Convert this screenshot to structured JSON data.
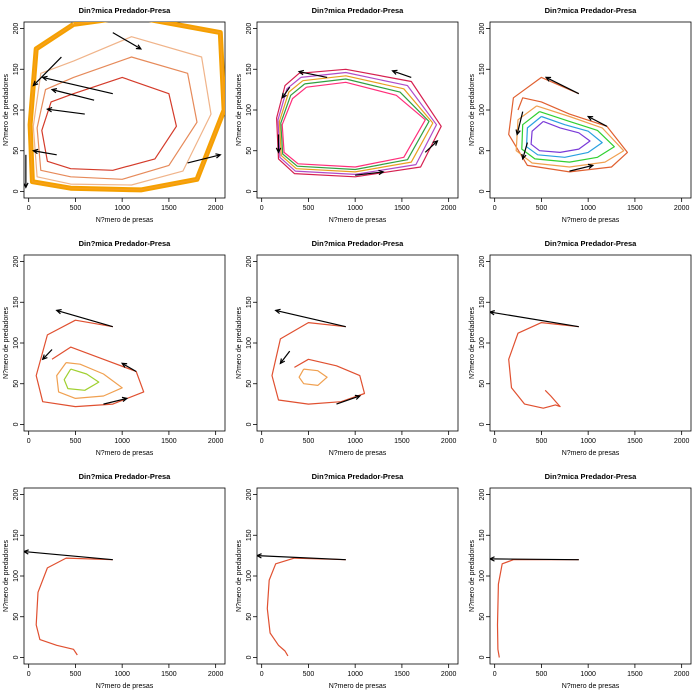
{
  "figure": {
    "title_text": "Din?mica Predador-Presa",
    "xlabel_text": "N?mero de presas",
    "ylabel_text": "N?mero de predadores"
  },
  "chart_data": [
    {
      "type": "line",
      "title": "Din?mica Predador-Presa",
      "xlabel": "N?mero de presas",
      "ylabel": "N?mero de predadores",
      "xlim": [
        -50,
        2100
      ],
      "ylim": [
        -8,
        208
      ],
      "xticks": [
        0,
        500,
        1000,
        1500,
        2000
      ],
      "yticks": [
        0,
        50,
        100,
        150,
        200
      ],
      "outer_color": "#f5a000",
      "series": [
        {
          "label": "",
          "color": "#d43b2a",
          "x": [
            480,
            240,
            140,
            200,
            450,
            900,
            1350,
            1580,
            1500,
            1000,
            480
          ],
          "y": [
            120,
            110,
            75,
            37,
            28,
            26,
            40,
            80,
            120,
            140,
            120
          ]
        },
        {
          "label": "",
          "color": "#e68a5a",
          "x": [
            480,
            180,
            90,
            130,
            450,
            1000,
            1500,
            1800,
            1700,
            1100,
            480
          ],
          "y": [
            140,
            125,
            78,
            26,
            18,
            15,
            32,
            85,
            145,
            165,
            140
          ]
        },
        {
          "label": "",
          "color": "#f0b48a",
          "x": [
            480,
            130,
            50,
            90,
            450,
            1100,
            1650,
            1950,
            1850,
            1100,
            480
          ],
          "y": [
            160,
            145,
            80,
            18,
            9,
            8,
            25,
            95,
            165,
            190,
            160
          ]
        },
        {
          "label": "",
          "color": "#f7a020",
          "x": [
            480,
            80,
            15,
            40,
            450,
            1200,
            1800,
            2090,
            2050,
            1100,
            480
          ],
          "y": [
            205,
            175,
            82,
            12,
            4,
            2,
            15,
            100,
            195,
            215,
            205
          ]
        }
      ],
      "arrows": [
        {
          "x": [
            900,
            150
          ],
          "y": [
            120,
            140
          ]
        },
        {
          "x": [
            700,
            250
          ],
          "y": [
            112,
            125
          ]
        },
        {
          "x": [
            600,
            200
          ],
          "y": [
            95,
            101
          ]
        },
        {
          "x": [
            350,
            50
          ],
          "y": [
            165,
            130
          ]
        },
        {
          "x": [
            900,
            1200
          ],
          "y": [
            195,
            175
          ]
        },
        {
          "x": [
            1700,
            2050
          ],
          "y": [
            35,
            45
          ]
        },
        {
          "x": [
            300,
            50
          ],
          "y": [
            45,
            50
          ]
        },
        {
          "x": [
            -30,
            -30
          ],
          "y": [
            45,
            5
          ]
        }
      ]
    },
    {
      "type": "line",
      "title": "Din?mica Predador-Presa",
      "xlabel": "N?mero de presas",
      "ylabel": "N?mero de predadores",
      "xlim": [
        -50,
        2100
      ],
      "ylim": [
        -8,
        208
      ],
      "xticks": [
        0,
        500,
        1000,
        1500,
        2000
      ],
      "yticks": [
        0,
        50,
        100,
        150,
        200
      ],
      "series": [
        {
          "label": "",
          "color": "#d62050",
          "x": [
            400,
            250,
            160,
            180,
            350,
            1000,
            1700,
            1920,
            1600,
            900,
            400
          ],
          "y": [
            145,
            130,
            90,
            40,
            22,
            18,
            30,
            80,
            135,
            150,
            145
          ]
        },
        {
          "label": "",
          "color": "#b04cc8",
          "x": [
            420,
            270,
            175,
            195,
            360,
            1000,
            1650,
            1870,
            1560,
            900,
            420
          ],
          "y": [
            140,
            126,
            88,
            42,
            25,
            21,
            33,
            82,
            130,
            146,
            140
          ]
        },
        {
          "label": "",
          "color": "#e8a020",
          "x": [
            440,
            290,
            190,
            210,
            370,
            1000,
            1600,
            1830,
            1520,
            900,
            440
          ],
          "y": [
            136,
            122,
            86,
            44,
            28,
            24,
            36,
            84,
            126,
            142,
            136
          ]
        },
        {
          "label": "",
          "color": "#30a040",
          "x": [
            460,
            310,
            205,
            225,
            380,
            1000,
            1560,
            1790,
            1480,
            900,
            460
          ],
          "y": [
            132,
            118,
            84,
            46,
            31,
            27,
            39,
            86,
            122,
            138,
            132
          ]
        },
        {
          "label": "",
          "color": "#ff2e7a",
          "x": [
            480,
            330,
            220,
            240,
            390,
            1000,
            1520,
            1750,
            1440,
            900,
            480
          ],
          "y": [
            128,
            114,
            82,
            48,
            34,
            30,
            42,
            88,
            118,
            134,
            128
          ]
        }
      ],
      "arrows": [
        {
          "x": [
            700,
            400
          ],
          "y": [
            140,
            147
          ]
        },
        {
          "x": [
            300,
            220
          ],
          "y": [
            128,
            115
          ]
        },
        {
          "x": [
            180,
            180
          ],
          "y": [
            70,
            48
          ]
        },
        {
          "x": [
            1000,
            1300
          ],
          "y": [
            20,
            24
          ]
        },
        {
          "x": [
            1750,
            1880
          ],
          "y": [
            48,
            62
          ]
        },
        {
          "x": [
            1600,
            1400
          ],
          "y": [
            140,
            148
          ]
        }
      ]
    },
    {
      "type": "line",
      "title": "Din?mica Predador-Presa",
      "xlabel": "N?mero de presas",
      "ylabel": "N?mero de predadores",
      "xlim": [
        -50,
        2100
      ],
      "ylim": [
        -8,
        208
      ],
      "xticks": [
        0,
        500,
        1000,
        1500,
        2000
      ],
      "yticks": [
        0,
        50,
        100,
        150,
        200
      ],
      "series": [
        {
          "label": "",
          "color": "#e06030",
          "x": [
            900,
            500,
            200,
            150,
            350,
            800,
            1250,
            1420,
            1200,
            800,
            500,
            300,
            250
          ],
          "y": [
            120,
            140,
            115,
            70,
            32,
            24,
            30,
            48,
            80,
            95,
            110,
            115,
            100
          ]
        },
        {
          "label": "",
          "color": "#f0a050",
          "x": [
            450,
            250,
            230,
            400,
            800,
            1180,
            1380,
            1150,
            800,
            450
          ],
          "y": [
            105,
            88,
            50,
            35,
            30,
            36,
            50,
            78,
            92,
            105
          ]
        },
        {
          "label": "",
          "color": "#30d030",
          "x": [
            480,
            300,
            290,
            430,
            800,
            1100,
            1280,
            1100,
            800,
            480
          ],
          "y": [
            98,
            82,
            52,
            40,
            36,
            42,
            55,
            75,
            86,
            98
          ]
        },
        {
          "label": "",
          "color": "#2aa0e0",
          "x": [
            500,
            350,
            340,
            460,
            750,
            1000,
            1150,
            1000,
            750,
            500
          ],
          "y": [
            92,
            78,
            55,
            45,
            42,
            48,
            60,
            74,
            82,
            92
          ]
        },
        {
          "label": "",
          "color": "#7a3ad8",
          "x": [
            520,
            400,
            390,
            480,
            700,
            900,
            1020,
            900,
            700,
            520
          ],
          "y": [
            86,
            74,
            58,
            50,
            48,
            52,
            62,
            72,
            78,
            86
          ]
        }
      ],
      "arrows": [
        {
          "x": [
            900,
            550
          ],
          "y": [
            120,
            140
          ]
        },
        {
          "x": [
            300,
            240
          ],
          "y": [
            98,
            70
          ]
        },
        {
          "x": [
            800,
            1050
          ],
          "y": [
            25,
            32
          ]
        },
        {
          "x": [
            1200,
            1000
          ],
          "y": [
            80,
            92
          ]
        },
        {
          "x": [
            350,
            300
          ],
          "y": [
            60,
            40
          ]
        }
      ]
    },
    {
      "type": "line",
      "title": "Din?mica Predador-Presa",
      "xlabel": "N?mero de presas",
      "ylabel": "N?mero de predadores",
      "xlim": [
        -50,
        2100
      ],
      "ylim": [
        -8,
        208
      ],
      "xticks": [
        0,
        500,
        1000,
        1500,
        2000
      ],
      "yticks": [
        0,
        50,
        100,
        150,
        200
      ],
      "series": [
        {
          "label": "",
          "color": "#e05030",
          "x": [
            900,
            500,
            200,
            80,
            150,
            500,
            900,
            1230,
            1150,
            800,
            450,
            250
          ],
          "y": [
            120,
            128,
            110,
            60,
            28,
            22,
            25,
            40,
            65,
            80,
            95,
            80
          ]
        },
        {
          "label": "",
          "color": "#f0a050",
          "x": [
            400,
            300,
            320,
            500,
            800,
            1000,
            800,
            550,
            400
          ],
          "y": [
            76,
            60,
            40,
            32,
            35,
            45,
            62,
            74,
            76
          ]
        },
        {
          "label": "",
          "color": "#a0d030",
          "x": [
            450,
            380,
            420,
            600,
            750,
            620,
            450
          ],
          "y": [
            68,
            55,
            44,
            42,
            52,
            62,
            68
          ]
        }
      ],
      "arrows": [
        {
          "x": [
            900,
            300
          ],
          "y": [
            120,
            140
          ]
        },
        {
          "x": [
            250,
            150
          ],
          "y": [
            92,
            80
          ]
        },
        {
          "x": [
            800,
            1050
          ],
          "y": [
            25,
            32
          ]
        },
        {
          "x": [
            1150,
            1000
          ],
          "y": [
            65,
            75
          ]
        }
      ]
    },
    {
      "type": "line",
      "title": "Din?mica Predador-Presa",
      "xlabel": "N?mero de presas",
      "ylabel": "N?mero de predadores",
      "xlim": [
        -50,
        2100
      ],
      "ylim": [
        -8,
        208
      ],
      "xticks": [
        0,
        500,
        1000,
        1500,
        2000
      ],
      "yticks": [
        0,
        50,
        100,
        150,
        200
      ],
      "series": [
        {
          "label": "",
          "color": "#e05030",
          "x": [
            900,
            500,
            200,
            110,
            180,
            500,
            850,
            1100,
            1050,
            800,
            500,
            350
          ],
          "y": [
            120,
            125,
            105,
            60,
            30,
            25,
            28,
            38,
            60,
            72,
            80,
            70
          ]
        },
        {
          "label": "",
          "color": "#f0a050",
          "x": [
            450,
            400,
            450,
            600,
            700,
            600,
            450
          ],
          "y": [
            68,
            58,
            50,
            48,
            58,
            66,
            68
          ]
        }
      ],
      "arrows": [
        {
          "x": [
            900,
            150
          ],
          "y": [
            120,
            140
          ]
        },
        {
          "x": [
            300,
            200
          ],
          "y": [
            90,
            75
          ]
        },
        {
          "x": [
            800,
            1050
          ],
          "y": [
            25,
            35
          ]
        }
      ]
    },
    {
      "type": "line",
      "title": "Din?mica Predador-Presa",
      "xlabel": "N?mero de presas",
      "ylabel": "N?mero de predadores",
      "xlim": [
        -50,
        2100
      ],
      "ylim": [
        -8,
        208
      ],
      "xticks": [
        0,
        500,
        1000,
        1500,
        2000
      ],
      "yticks": [
        0,
        50,
        100,
        150,
        200
      ],
      "series": [
        {
          "label": "",
          "color": "#e05030",
          "x": [
            900,
            500,
            250,
            150,
            180,
            320,
            520,
            650,
            700,
            600,
            540
          ],
          "y": [
            120,
            125,
            112,
            80,
            45,
            25,
            20,
            24,
            22,
            35,
            42
          ]
        }
      ],
      "arrows": [
        {
          "x": [
            900,
            -50
          ],
          "y": [
            120,
            138
          ]
        }
      ]
    },
    {
      "type": "line",
      "title": "Din?mica Predador-Presa",
      "xlabel": "N?mero de presas",
      "ylabel": "N?mero de predadores",
      "xlim": [
        -50,
        2100
      ],
      "ylim": [
        -8,
        208
      ],
      "xticks": [
        0,
        500,
        1000,
        1500,
        2000
      ],
      "yticks": [
        0,
        50,
        100,
        150,
        200
      ],
      "series": [
        {
          "label": "",
          "color": "#e05030",
          "x": [
            900,
            400,
            200,
            100,
            80,
            120,
            300,
            480,
            520
          ],
          "y": [
            120,
            122,
            110,
            80,
            40,
            22,
            15,
            10,
            3
          ]
        }
      ],
      "arrows": [
        {
          "x": [
            900,
            -50
          ],
          "y": [
            120,
            130
          ]
        }
      ]
    },
    {
      "type": "line",
      "title": "Din?mica Predador-Presa",
      "xlabel": "N?mero de presas",
      "ylabel": "N?mero de predadores",
      "xlim": [
        -50,
        2100
      ],
      "ylim": [
        -8,
        208
      ],
      "xticks": [
        0,
        500,
        1000,
        1500,
        2000
      ],
      "yticks": [
        0,
        50,
        100,
        150,
        200
      ],
      "series": [
        {
          "label": "",
          "color": "#e05030",
          "x": [
            900,
            350,
            150,
            80,
            60,
            90,
            180,
            250,
            280
          ],
          "y": [
            120,
            122,
            115,
            95,
            60,
            30,
            15,
            8,
            2
          ]
        }
      ],
      "arrows": [
        {
          "x": [
            900,
            -50
          ],
          "y": [
            120,
            125
          ]
        }
      ]
    },
    {
      "type": "line",
      "title": "Din?mica Predador-Presa",
      "xlabel": "N?mero de presas",
      "ylabel": "N?mero de predadores",
      "xlim": [
        -50,
        2100
      ],
      "ylim": [
        -8,
        208
      ],
      "xticks": [
        0,
        500,
        1000,
        1500,
        2000
      ],
      "yticks": [
        0,
        50,
        100,
        150,
        200
      ],
      "series": [
        {
          "label": "",
          "color": "#e05030",
          "x": [
            900,
            200,
            80,
            40,
            30,
            35,
            50
          ],
          "y": [
            120,
            120,
            115,
            90,
            40,
            10,
            0
          ]
        }
      ],
      "arrows": [
        {
          "x": [
            900,
            -50
          ],
          "y": [
            120,
            121
          ]
        }
      ]
    }
  ]
}
